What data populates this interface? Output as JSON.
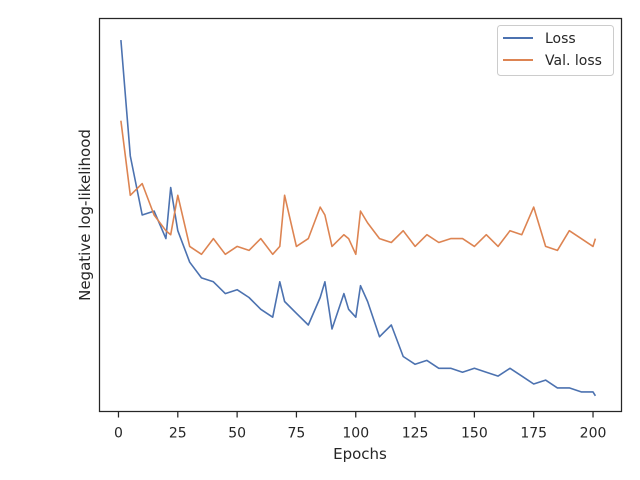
{
  "chart_data": {
    "type": "line",
    "xlabel": "Epochs",
    "ylabel": "Negative log-likelihood",
    "xlim": [
      -8,
      212
    ],
    "ylim": [
      0,
      1
    ],
    "x_ticks": [
      0,
      25,
      50,
      75,
      100,
      125,
      150,
      175,
      200
    ],
    "y_ticks_visible": false,
    "grid": false,
    "legend_position": "top-right",
    "x": [
      1,
      5,
      10,
      15,
      20,
      22,
      25,
      30,
      35,
      40,
      45,
      50,
      55,
      60,
      65,
      68,
      70,
      75,
      80,
      85,
      87,
      90,
      95,
      97,
      100,
      102,
      105,
      110,
      115,
      120,
      125,
      130,
      135,
      140,
      145,
      150,
      155,
      160,
      165,
      170,
      175,
      180,
      185,
      190,
      195,
      200,
      201
    ],
    "series": [
      {
        "name": "Loss",
        "color": "#4c72b0",
        "values": [
          0.945,
          0.65,
          0.5,
          0.51,
          0.44,
          0.57,
          0.46,
          0.38,
          0.34,
          0.33,
          0.3,
          0.31,
          0.29,
          0.26,
          0.24,
          0.33,
          0.28,
          0.25,
          0.22,
          0.29,
          0.33,
          0.21,
          0.3,
          0.26,
          0.24,
          0.32,
          0.28,
          0.19,
          0.22,
          0.14,
          0.12,
          0.13,
          0.11,
          0.11,
          0.1,
          0.11,
          0.1,
          0.09,
          0.11,
          0.09,
          0.07,
          0.08,
          0.06,
          0.06,
          0.05,
          0.05,
          0.04
        ]
      },
      {
        "name": "Val. loss",
        "color": "#dd8452",
        "values": [
          0.74,
          0.55,
          0.58,
          0.5,
          0.46,
          0.45,
          0.55,
          0.42,
          0.4,
          0.44,
          0.4,
          0.42,
          0.41,
          0.44,
          0.4,
          0.42,
          0.55,
          0.42,
          0.44,
          0.52,
          0.5,
          0.42,
          0.45,
          0.44,
          0.4,
          0.51,
          0.48,
          0.44,
          0.43,
          0.46,
          0.42,
          0.45,
          0.43,
          0.44,
          0.44,
          0.42,
          0.45,
          0.42,
          0.46,
          0.45,
          0.52,
          0.42,
          0.41,
          0.46,
          0.44,
          0.42,
          0.44
        ]
      }
    ]
  }
}
